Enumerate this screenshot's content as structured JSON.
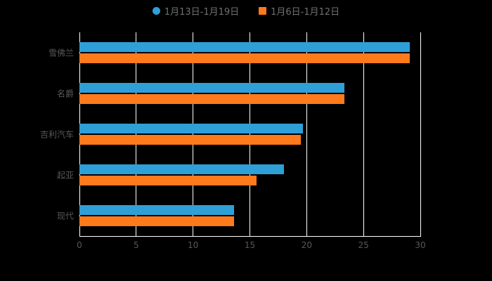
{
  "legend": {
    "items": [
      {
        "label": "1月13日-1月19日",
        "color": "#2f9fd8",
        "marker": "circle"
      },
      {
        "label": "1月6日-1月12日",
        "color": "#ff7a1b",
        "marker": "square"
      }
    ]
  },
  "chart_data": {
    "type": "bar",
    "orientation": "horizontal",
    "title": "",
    "xlabel": "",
    "ylabel": "",
    "categories": [
      "雪佛兰",
      "名爵",
      "吉利汽车",
      "起亚",
      "现代"
    ],
    "series": [
      {
        "name": "1月13日-1月19日",
        "color": "#2f9fd8",
        "values": [
          29.1,
          23.3,
          19.7,
          18.0,
          13.6
        ]
      },
      {
        "name": "1月6日-1月12日",
        "color": "#ff7a1b",
        "values": [
          29.1,
          23.3,
          19.5,
          15.6,
          13.6
        ]
      }
    ],
    "xlim": [
      0,
      30
    ],
    "xticks": [
      0,
      5,
      10,
      15,
      20,
      25,
      30
    ],
    "grid": true,
    "legend_position": "top"
  },
  "colors": {
    "background": "#000000",
    "gridline": "#ffffff",
    "axis_line": "#ffffff",
    "tick_label": "#565859",
    "legend_label": "#6e7072"
  }
}
